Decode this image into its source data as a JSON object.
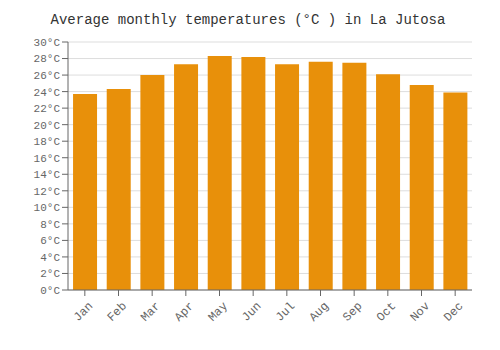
{
  "chart_data": {
    "type": "bar",
    "title": "Average monthly temperatures (°C ) in La Jutosa",
    "categories": [
      "Jan",
      "Feb",
      "Mar",
      "Apr",
      "May",
      "Jun",
      "Jul",
      "Aug",
      "Sep",
      "Oct",
      "Nov",
      "Dec"
    ],
    "values": [
      23.7,
      24.3,
      26.0,
      27.3,
      28.3,
      28.2,
      27.3,
      27.6,
      27.5,
      26.1,
      24.8,
      23.9
    ],
    "color": "#E8900A",
    "ylim": [
      0,
      30
    ],
    "yticks": [
      {
        "value": 0,
        "label": "0°C"
      },
      {
        "value": 2,
        "label": "2°C"
      },
      {
        "value": 4,
        "label": "4°C"
      },
      {
        "value": 6,
        "label": "6°C"
      },
      {
        "value": 8,
        "label": "8°C"
      },
      {
        "value": 10,
        "label": "10°C"
      },
      {
        "value": 12,
        "label": "12°C"
      },
      {
        "value": 14,
        "label": "14°C"
      },
      {
        "value": 16,
        "label": "16°C"
      },
      {
        "value": 18,
        "label": "18°C"
      },
      {
        "value": 20,
        "label": "20°C"
      },
      {
        "value": 22,
        "label": "22°C"
      },
      {
        "value": 24,
        "label": "24°C"
      },
      {
        "value": 26,
        "label": "26°C"
      },
      {
        "value": 28,
        "label": "28°C"
      },
      {
        "value": 30,
        "label": "30°C"
      }
    ],
    "grid": true
  }
}
